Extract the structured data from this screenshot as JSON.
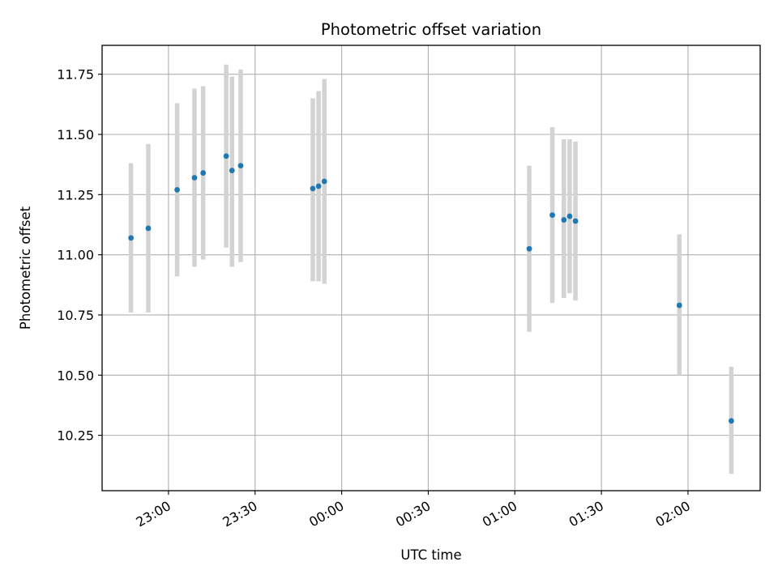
{
  "chart_data": {
    "type": "scatter",
    "title": "Photometric offset variation",
    "xlabel": "UTC time",
    "ylabel": "Photometric offset",
    "grid": true,
    "x_axis_type": "time",
    "xlim": [
      "22:37",
      "02:25"
    ],
    "ylim": [
      10.02,
      11.87
    ],
    "x_ticks": [
      "23:00",
      "23:30",
      "00:00",
      "00:30",
      "01:00",
      "01:30",
      "02:00"
    ],
    "y_ticks": [
      10.25,
      10.5,
      10.75,
      11.0,
      11.25,
      11.5,
      11.75
    ],
    "y_tick_labels": [
      "10.25",
      "10.50",
      "10.75",
      "11.00",
      "11.25",
      "11.50",
      "11.75"
    ],
    "marker_color": "#1f77b4",
    "errorbar_color": "#d3d3d3",
    "points": [
      {
        "time": "22:47",
        "y": 11.07,
        "yerr_low": 10.76,
        "yerr_high": 11.38
      },
      {
        "time": "22:53",
        "y": 11.11,
        "yerr_low": 10.76,
        "yerr_high": 11.46
      },
      {
        "time": "23:03",
        "y": 11.27,
        "yerr_low": 10.91,
        "yerr_high": 11.63
      },
      {
        "time": "23:09",
        "y": 11.32,
        "yerr_low": 10.95,
        "yerr_high": 11.69
      },
      {
        "time": "23:12",
        "y": 11.34,
        "yerr_low": 10.98,
        "yerr_high": 11.7
      },
      {
        "time": "23:20",
        "y": 11.41,
        "yerr_low": 11.03,
        "yerr_high": 11.79
      },
      {
        "time": "23:22",
        "y": 11.35,
        "yerr_low": 10.95,
        "yerr_high": 11.74
      },
      {
        "time": "23:25",
        "y": 11.37,
        "yerr_low": 10.97,
        "yerr_high": 11.77
      },
      {
        "time": "23:50",
        "y": 11.275,
        "yerr_low": 10.89,
        "yerr_high": 11.65
      },
      {
        "time": "23:52",
        "y": 11.285,
        "yerr_low": 10.89,
        "yerr_high": 11.68
      },
      {
        "time": "23:54",
        "y": 11.305,
        "yerr_low": 10.88,
        "yerr_high": 11.73
      },
      {
        "time": "01:05",
        "y": 11.025,
        "yerr_low": 10.68,
        "yerr_high": 11.37
      },
      {
        "time": "01:13",
        "y": 11.165,
        "yerr_low": 10.8,
        "yerr_high": 11.53
      },
      {
        "time": "01:17",
        "y": 11.145,
        "yerr_low": 10.82,
        "yerr_high": 11.48
      },
      {
        "time": "01:19",
        "y": 11.16,
        "yerr_low": 10.84,
        "yerr_high": 11.48
      },
      {
        "time": "01:21",
        "y": 11.14,
        "yerr_low": 10.81,
        "yerr_high": 11.47
      },
      {
        "time": "01:57",
        "y": 10.79,
        "yerr_low": 10.5,
        "yerr_high": 11.085
      },
      {
        "time": "02:15",
        "y": 10.31,
        "yerr_low": 10.09,
        "yerr_high": 10.535
      }
    ]
  }
}
